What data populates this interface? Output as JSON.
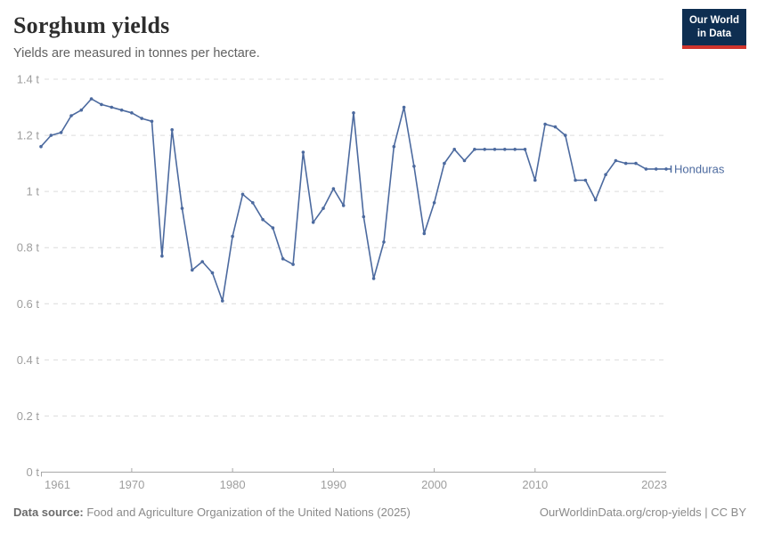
{
  "header": {
    "title": "Sorghum yields",
    "subtitle": "Yields are measured in tonnes per hectare."
  },
  "logo": {
    "line1": "Our World",
    "line2": "in Data"
  },
  "footer": {
    "source_label": "Data source:",
    "source_text": " Food and Agriculture Organization of the United Nations (2025)",
    "credit": "OurWorldinData.org/crop-yields | CC BY"
  },
  "colors": {
    "line": "#4C6A9F",
    "axis": "#a8a8a8",
    "grid": "#dcdcdc",
    "tick_label": "#9e9e9e",
    "logo_bg": "#0e2e51",
    "logo_stripe": "#d0342c"
  },
  "chart_data": {
    "type": "line",
    "title": "Sorghum yields",
    "subtitle": "Yields are measured in tonnes per hectare.",
    "unit": "tonnes per hectare",
    "x": [
      1961,
      1962,
      1963,
      1964,
      1965,
      1966,
      1967,
      1968,
      1969,
      1970,
      1971,
      1972,
      1973,
      1974,
      1975,
      1976,
      1977,
      1978,
      1979,
      1980,
      1981,
      1982,
      1983,
      1984,
      1985,
      1986,
      1987,
      1988,
      1989,
      1990,
      1991,
      1992,
      1993,
      1994,
      1995,
      1996,
      1997,
      1998,
      1999,
      2000,
      2001,
      2002,
      2003,
      2004,
      2005,
      2006,
      2007,
      2008,
      2009,
      2010,
      2011,
      2012,
      2013,
      2014,
      2015,
      2016,
      2017,
      2018,
      2019,
      2020,
      2021,
      2022,
      2023
    ],
    "series": [
      {
        "name": "Honduras",
        "color": "#4C6A9F",
        "values": [
          1.16,
          1.2,
          1.21,
          1.27,
          1.29,
          1.33,
          1.31,
          1.3,
          1.29,
          1.28,
          1.26,
          1.25,
          0.77,
          1.22,
          0.94,
          0.72,
          0.75,
          0.71,
          0.61,
          0.84,
          0.99,
          0.96,
          0.9,
          0.87,
          0.76,
          0.74,
          1.14,
          0.89,
          0.94,
          1.01,
          0.95,
          1.28,
          0.91,
          0.69,
          0.82,
          1.16,
          1.3,
          1.09,
          0.85,
          0.96,
          1.1,
          1.15,
          1.11,
          1.15,
          1.15,
          1.15,
          1.15,
          1.15,
          1.15,
          1.04,
          1.24,
          1.23,
          1.2,
          1.04,
          1.04,
          0.97,
          1.06,
          1.11,
          1.1,
          1.1,
          1.08,
          1.08,
          1.08
        ]
      }
    ],
    "xlim": [
      1961,
      2023
    ],
    "ylim": [
      0,
      1.4
    ],
    "x_ticks": [
      1961,
      1970,
      1980,
      1990,
      2000,
      2010,
      2023
    ],
    "y_ticks": [
      0,
      0.2,
      0.4,
      0.6,
      0.8,
      1,
      1.2,
      1.4
    ],
    "y_tick_labels": [
      "0 t",
      "0.2 t",
      "0.4 t",
      "0.6 t",
      "0.8 t",
      "1 t",
      "1.2 t",
      "1.4 t"
    ],
    "grid": "horizontal-dashed",
    "legend_position": "end-of-line-label"
  }
}
